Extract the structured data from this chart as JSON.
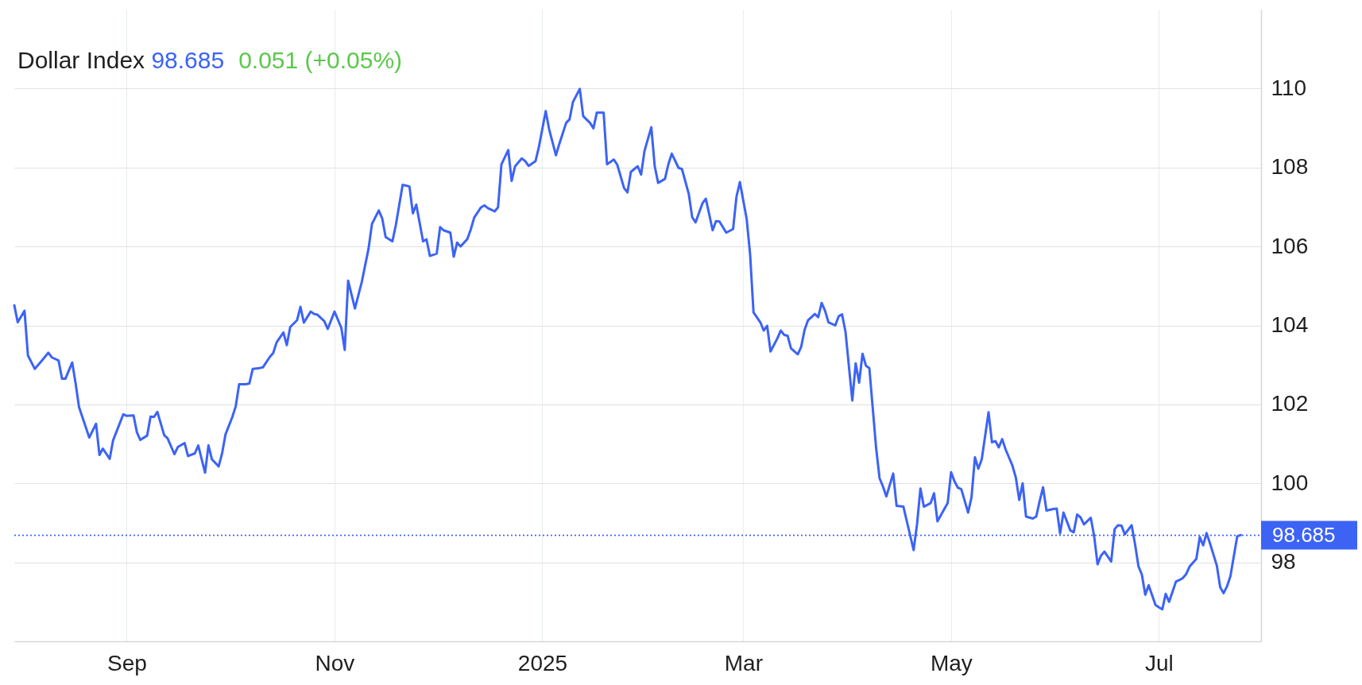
{
  "chart_data": {
    "type": "line",
    "title": "Dollar Index",
    "annotations": [
      "98.685",
      "0.051 (+0.05%)"
    ],
    "xlim": [
      "2024-07-30",
      "2025-07-31"
    ],
    "xticks": [
      {
        "value": "2024-09-01",
        "label": "Sep"
      },
      {
        "value": "2024-11-01",
        "label": "Nov"
      },
      {
        "value": "2025-01-01",
        "label": "2025"
      },
      {
        "value": "2025-03-01",
        "label": "Mar"
      },
      {
        "value": "2025-05-01",
        "label": "May"
      },
      {
        "value": "2025-07-01",
        "label": "Jul"
      }
    ],
    "ylim": [
      96,
      112
    ],
    "yticks": [
      98,
      100,
      102,
      104,
      106,
      108,
      110
    ],
    "grid": true,
    "marker": "none",
    "line_style": "solid",
    "ref_lines": [
      {
        "axis": "y",
        "value": 98.685,
        "label": "98.685",
        "color": "#3c63f6",
        "line_style": "dotted"
      }
    ],
    "series": [
      {
        "color": "#3c63f6",
        "x": [
          "2024-07-30",
          "2024-07-31",
          "2024-08-02",
          "2024-08-03",
          "2024-08-05",
          "2024-08-07",
          "2024-08-09",
          "2024-08-10",
          "2024-08-12",
          "2024-08-13",
          "2024-08-14",
          "2024-08-16",
          "2024-08-17",
          "2024-08-18",
          "2024-08-20",
          "2024-08-21",
          "2024-08-23",
          "2024-08-24",
          "2024-08-25",
          "2024-08-27",
          "2024-08-28",
          "2024-08-31",
          "2024-09-01",
          "2024-09-03",
          "2024-09-04",
          "2024-09-05",
          "2024-09-07",
          "2024-09-08",
          "2024-09-09",
          "2024-09-10",
          "2024-09-12",
          "2024-09-13",
          "2024-09-15",
          "2024-09-16",
          "2024-09-18",
          "2024-09-19",
          "2024-09-21",
          "2024-09-22",
          "2024-09-24",
          "2024-09-25",
          "2024-09-26",
          "2024-09-28",
          "2024-09-29",
          "2024-09-30",
          "2024-10-02",
          "2024-10-03",
          "2024-10-04",
          "2024-10-06",
          "2024-10-07",
          "2024-10-08",
          "2024-10-10",
          "2024-10-11",
          "2024-10-13",
          "2024-10-14",
          "2024-10-15",
          "2024-10-17",
          "2024-10-18",
          "2024-10-19",
          "2024-10-21",
          "2024-10-22",
          "2024-10-23",
          "2024-10-25",
          "2024-10-26",
          "2024-10-27",
          "2024-10-29",
          "2024-10-30",
          "2024-11-01",
          "2024-11-03",
          "2024-11-04",
          "2024-11-05",
          "2024-11-07",
          "2024-11-09",
          "2024-11-11",
          "2024-11-12",
          "2024-11-14",
          "2024-11-15",
          "2024-11-16",
          "2024-11-18",
          "2024-11-19",
          "2024-11-21",
          "2024-11-23",
          "2024-11-24",
          "2024-11-25",
          "2024-11-27",
          "2024-11-28",
          "2024-11-29",
          "2024-12-01",
          "2024-12-02",
          "2024-12-03",
          "2024-12-05",
          "2024-12-06",
          "2024-12-07",
          "2024-12-08",
          "2024-12-10",
          "2024-12-11",
          "2024-12-12",
          "2024-12-14",
          "2024-12-15",
          "2024-12-16",
          "2024-12-18",
          "2024-12-19",
          "2024-12-20",
          "2024-12-22",
          "2024-12-23",
          "2024-12-24",
          "2024-12-26",
          "2024-12-27",
          "2024-12-28",
          "2024-12-30",
          "2024-12-31",
          "2025-01-02",
          "2025-01-03",
          "2025-01-05",
          "2025-01-06",
          "2025-01-08",
          "2025-01-09",
          "2025-01-10",
          "2025-01-12",
          "2025-01-13",
          "2025-01-15",
          "2025-01-16",
          "2025-01-17",
          "2025-01-19",
          "2025-01-20",
          "2025-01-22",
          "2025-01-23",
          "2025-01-25",
          "2025-01-26",
          "2025-01-27",
          "2025-01-29",
          "2025-01-30",
          "2025-01-31",
          "2025-02-02",
          "2025-02-03",
          "2025-02-04",
          "2025-02-06",
          "2025-02-07",
          "2025-02-08",
          "2025-02-10",
          "2025-02-11",
          "2025-02-13",
          "2025-02-14",
          "2025-02-15",
          "2025-02-17",
          "2025-02-18",
          "2025-02-20",
          "2025-02-21",
          "2025-02-22",
          "2025-02-24",
          "2025-02-26",
          "2025-02-27",
          "2025-02-28",
          "2025-03-02",
          "2025-03-03",
          "2025-03-04",
          "2025-03-06",
          "2025-03-07",
          "2025-03-08",
          "2025-03-09",
          "2025-03-11",
          "2025-03-12",
          "2025-03-13",
          "2025-03-14",
          "2025-03-15",
          "2025-03-17",
          "2025-03-18",
          "2025-03-19",
          "2025-03-20",
          "2025-03-22",
          "2025-03-23",
          "2025-03-24",
          "2025-03-25",
          "2025-03-26",
          "2025-03-28",
          "2025-03-29",
          "2025-03-30",
          "2025-03-31",
          "2025-04-02",
          "2025-04-03",
          "2025-04-04",
          "2025-04-05",
          "2025-04-06",
          "2025-04-07",
          "2025-04-09",
          "2025-04-10",
          "2025-04-11",
          "2025-04-12",
          "2025-04-14",
          "2025-04-15",
          "2025-04-17",
          "2025-04-20",
          "2025-04-21",
          "2025-04-22",
          "2025-04-23",
          "2025-04-25",
          "2025-04-26",
          "2025-04-27",
          "2025-04-30",
          "2025-05-01",
          "2025-05-02",
          "2025-05-03",
          "2025-05-04",
          "2025-05-06",
          "2025-05-07",
          "2025-05-08",
          "2025-05-09",
          "2025-05-10",
          "2025-05-12",
          "2025-05-13",
          "2025-05-14",
          "2025-05-15",
          "2025-05-16",
          "2025-05-17",
          "2025-05-19",
          "2025-05-20",
          "2025-05-21",
          "2025-05-22",
          "2025-05-23",
          "2025-05-25",
          "2025-05-26",
          "2025-05-27",
          "2025-05-28",
          "2025-05-29",
          "2025-05-31",
          "2025-06-01",
          "2025-06-02",
          "2025-06-03",
          "2025-06-05",
          "2025-06-06",
          "2025-06-07",
          "2025-06-08",
          "2025-06-09",
          "2025-06-11",
          "2025-06-12",
          "2025-06-13",
          "2025-06-14",
          "2025-06-15",
          "2025-06-17",
          "2025-06-18",
          "2025-06-19",
          "2025-06-20",
          "2025-06-21",
          "2025-06-23",
          "2025-06-24",
          "2025-06-25",
          "2025-06-26",
          "2025-06-27",
          "2025-06-28",
          "2025-06-30",
          "2025-07-01",
          "2025-07-02",
          "2025-07-03",
          "2025-07-04",
          "2025-07-06",
          "2025-07-07",
          "2025-07-08",
          "2025-07-09",
          "2025-07-10",
          "2025-07-12",
          "2025-07-13",
          "2025-07-14",
          "2025-07-15",
          "2025-07-16",
          "2025-07-18",
          "2025-07-19",
          "2025-07-20",
          "2025-07-21",
          "2025-07-22",
          "2025-07-24",
          "2025-07-25"
        ],
        "values": [
          104.51,
          104.08,
          104.37,
          103.24,
          102.9,
          103.1,
          103.31,
          103.19,
          103.11,
          102.65,
          102.65,
          103.06,
          102.53,
          101.93,
          101.42,
          101.16,
          101.51,
          100.72,
          100.88,
          100.62,
          101.09,
          101.75,
          101.71,
          101.72,
          101.29,
          101.1,
          101.21,
          101.69,
          101.68,
          101.81,
          101.22,
          101.14,
          100.74,
          100.92,
          101.02,
          100.69,
          100.76,
          100.96,
          100.27,
          100.96,
          100.61,
          100.43,
          100.76,
          101.24,
          101.68,
          101.95,
          102.51,
          102.51,
          102.53,
          102.9,
          102.92,
          102.94,
          103.2,
          103.3,
          103.57,
          103.82,
          103.5,
          103.96,
          104.13,
          104.47,
          104.07,
          104.35,
          104.29,
          104.27,
          104.11,
          103.91,
          104.35,
          103.94,
          103.38,
          105.13,
          104.43,
          105.1,
          105.95,
          106.57,
          106.91,
          106.71,
          106.24,
          106.13,
          106.54,
          107.56,
          107.52,
          106.84,
          107.06,
          106.13,
          106.18,
          105.76,
          105.82,
          106.49,
          106.41,
          106.35,
          105.74,
          106.1,
          106.0,
          106.19,
          106.43,
          106.73,
          106.99,
          107.04,
          106.97,
          106.89,
          106.99,
          108.08,
          108.44,
          107.66,
          108.03,
          108.23,
          108.16,
          108.04,
          108.16,
          108.52,
          109.43,
          108.97,
          108.31,
          108.6,
          109.13,
          109.22,
          109.66,
          109.99,
          109.3,
          109.13,
          108.99,
          109.39,
          109.39,
          108.08,
          108.2,
          108.07,
          107.48,
          107.37,
          107.89,
          108.03,
          107.82,
          108.42,
          109.02,
          108.03,
          107.61,
          107.71,
          108.08,
          108.35,
          107.99,
          107.96,
          107.33,
          106.74,
          106.61,
          107.09,
          107.21,
          106.41,
          106.64,
          106.63,
          106.35,
          106.44,
          107.26,
          107.63,
          106.69,
          105.8,
          104.33,
          104.08,
          103.87,
          103.99,
          103.34,
          103.67,
          103.87,
          103.76,
          103.74,
          103.42,
          103.27,
          103.46,
          103.89,
          104.13,
          104.29,
          104.21,
          104.57,
          104.37,
          104.08,
          104.0,
          104.23,
          104.28,
          103.84,
          102.1,
          103.04,
          102.55,
          103.28,
          102.98,
          102.92,
          100.89,
          100.13,
          99.92,
          99.67,
          100.25,
          99.43,
          99.41,
          98.31,
          98.96,
          99.87,
          99.41,
          99.5,
          99.75,
          99.04,
          99.5,
          100.28,
          100.05,
          99.89,
          99.85,
          99.26,
          99.65,
          100.66,
          100.37,
          100.61,
          101.8,
          101.04,
          101.07,
          100.91,
          101.12,
          100.86,
          100.45,
          100.15,
          99.58,
          100.0,
          99.16,
          99.11,
          99.16,
          99.55,
          99.9,
          99.31,
          99.35,
          99.36,
          98.73,
          99.26,
          98.81,
          98.76,
          99.21,
          99.14,
          98.96,
          99.13,
          98.66,
          97.95,
          98.17,
          98.27,
          98.02,
          98.84,
          98.94,
          98.93,
          98.71,
          98.94,
          98.46,
          97.9,
          97.69,
          97.18,
          97.42,
          96.92,
          96.86,
          96.81,
          97.2,
          97.0,
          97.51,
          97.55,
          97.6,
          97.7,
          97.89,
          98.09,
          98.64,
          98.43,
          98.74,
          98.48,
          97.92,
          97.37,
          97.22,
          97.39,
          97.65,
          98.66,
          98.69
        ]
      }
    ]
  }
}
